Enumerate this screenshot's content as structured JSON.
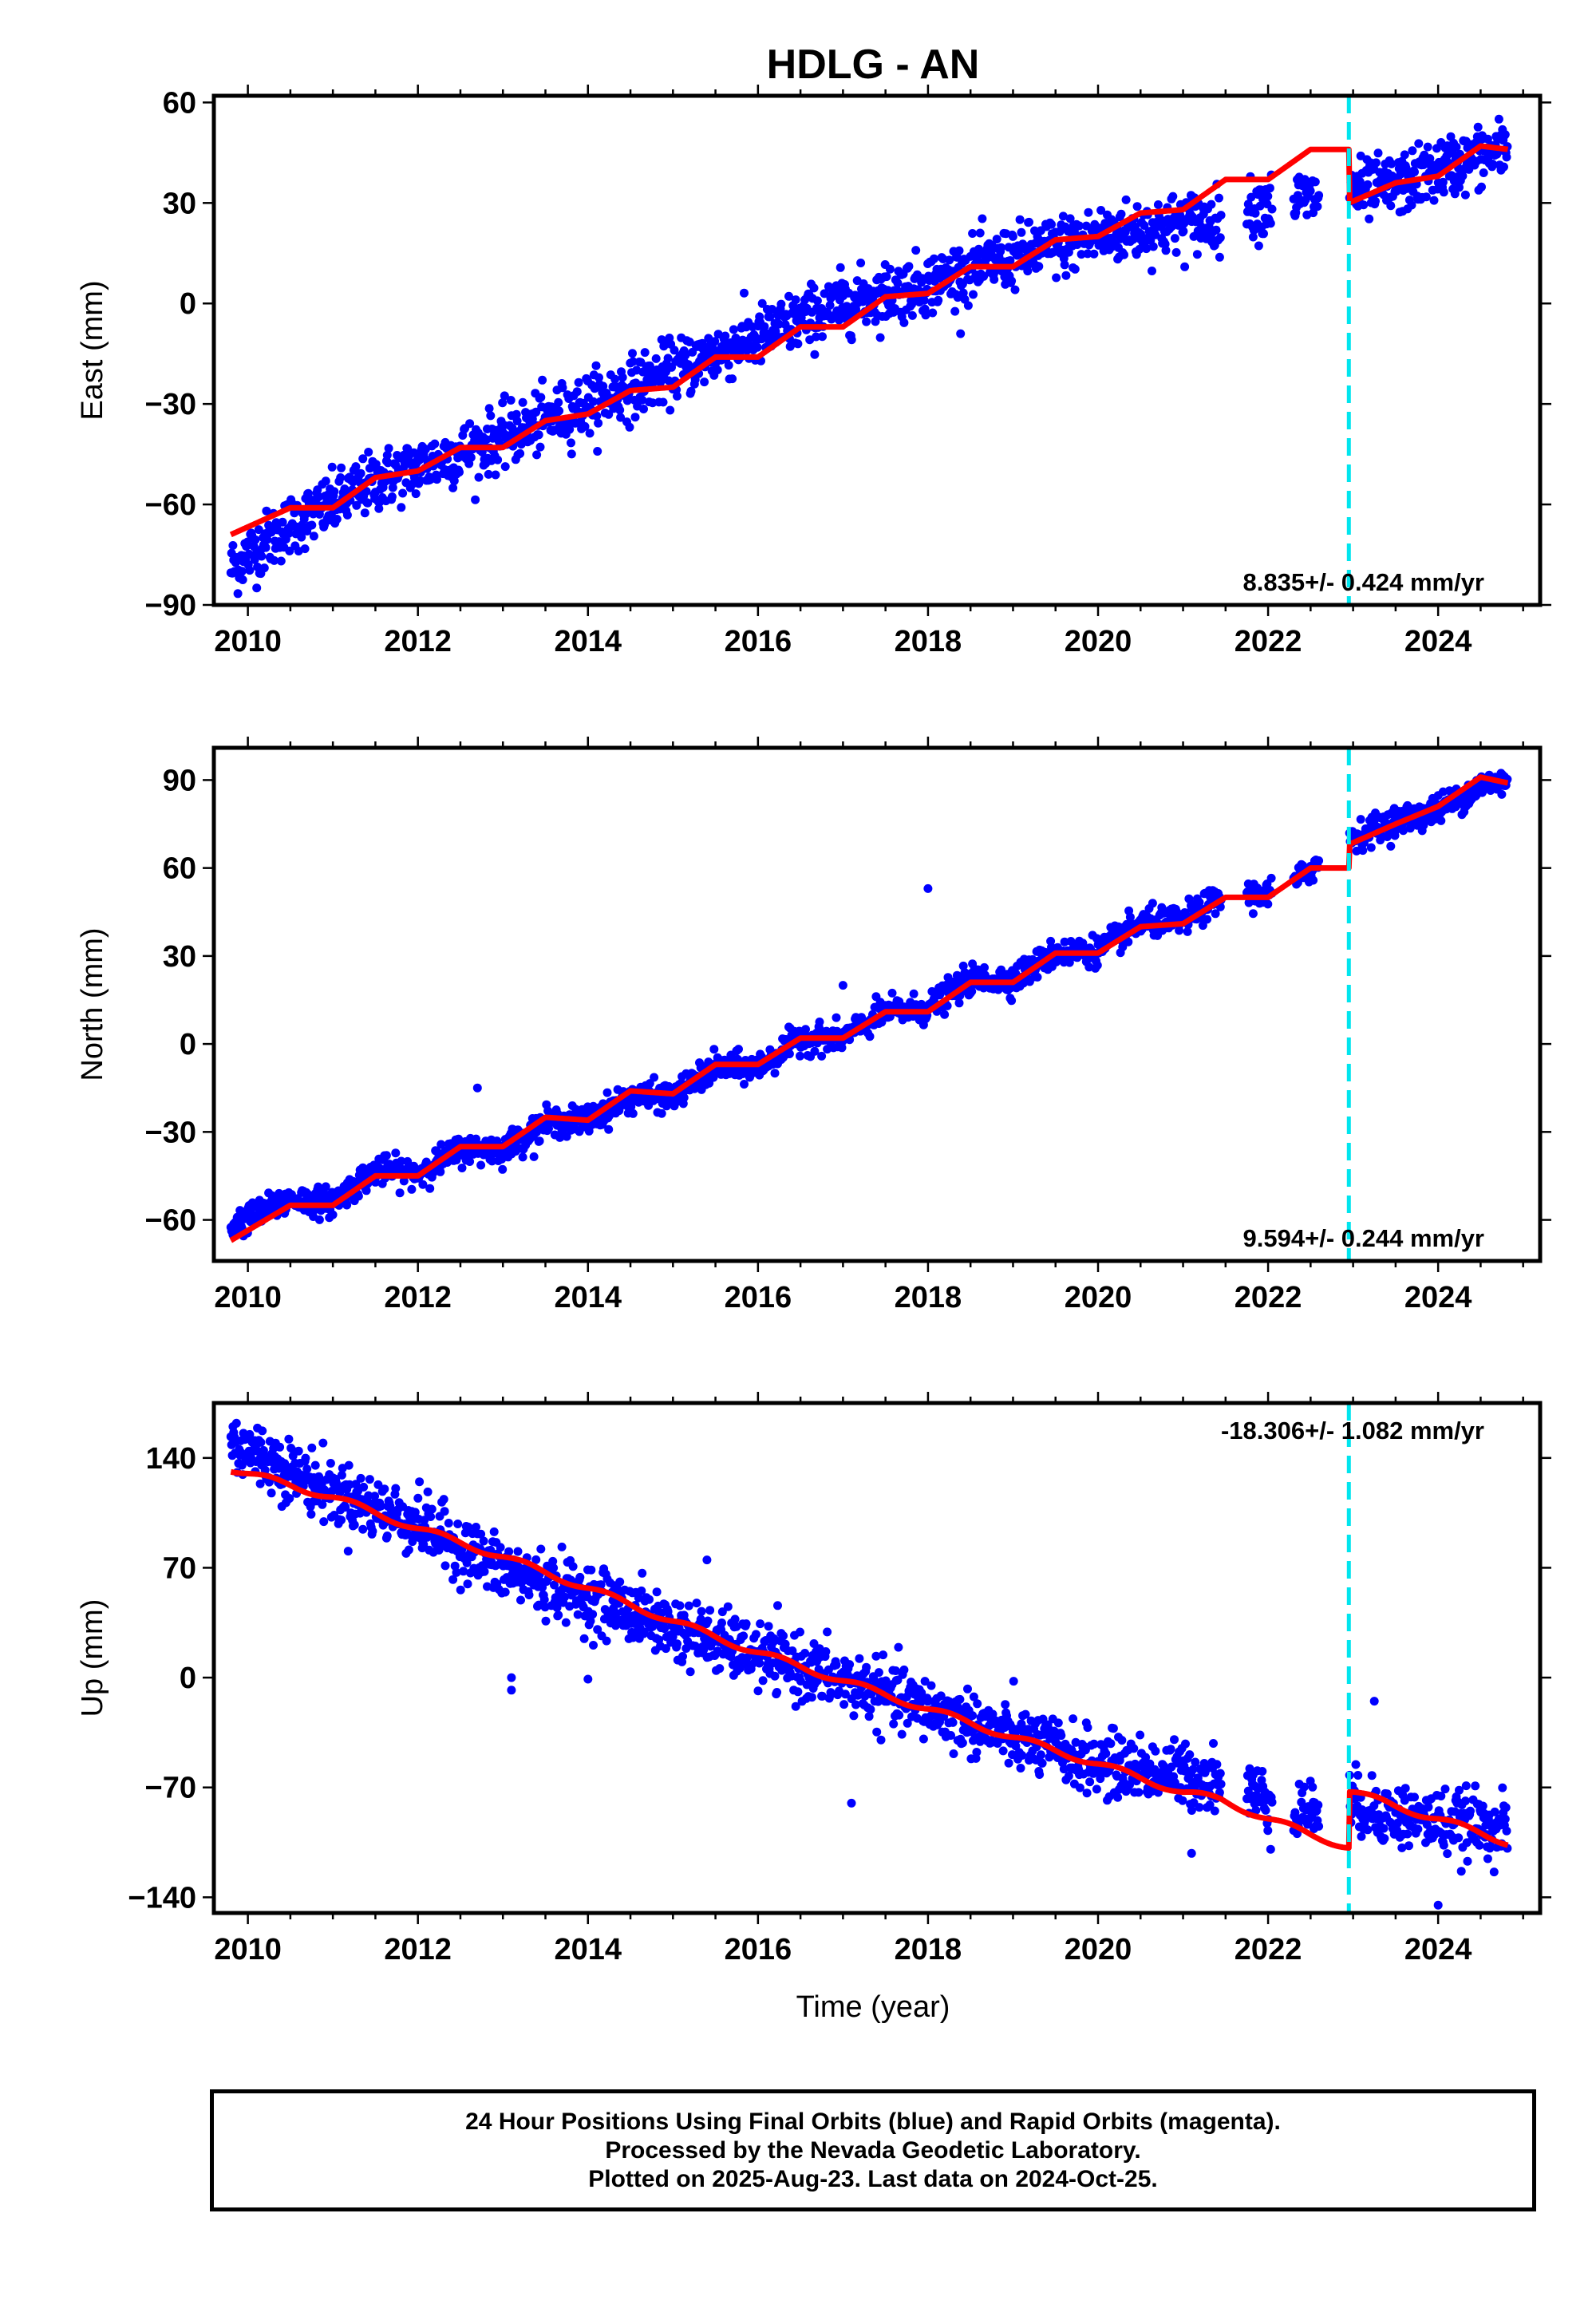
{
  "title": "HDLG - AN",
  "chart_data": [
    {
      "type": "scatter",
      "component": "East",
      "ylabel": "East (mm)",
      "xlim": [
        2009.6,
        2025.2
      ],
      "ylim": [
        -90,
        62
      ],
      "xticks": [
        2010,
        2012,
        2014,
        2016,
        2018,
        2020,
        2022,
        2024
      ],
      "yticks": [
        -90,
        -60,
        -30,
        0,
        30,
        60
      ],
      "rate_text": "8.835+/- 0.424 mm/yr",
      "rate_position": "bottom-right",
      "gaps": [
        [
          2021.45,
          2021.75
        ],
        [
          2022.05,
          2022.3
        ],
        [
          2022.6,
          2022.95
        ]
      ],
      "scatter_series": {
        "name": "24 Hour Positions (blue)",
        "color": "#0000ff",
        "day_step": 3,
        "profile": [
          [
            2009.8,
            -79
          ],
          [
            2010.0,
            -75
          ],
          [
            2010.5,
            -66
          ],
          [
            2011.0,
            -60
          ],
          [
            2011.5,
            -53
          ],
          [
            2012.0,
            -49
          ],
          [
            2013.0,
            -40
          ],
          [
            2014.0,
            -30
          ],
          [
            2015.0,
            -20
          ],
          [
            2016.0,
            -10
          ],
          [
            2017.0,
            0
          ],
          [
            2018.0,
            6
          ],
          [
            2019.0,
            14
          ],
          [
            2020.0,
            20
          ],
          [
            2021.0,
            24
          ],
          [
            2021.45,
            25
          ],
          [
            2022.0,
            30
          ],
          [
            2022.3,
            31
          ],
          [
            2022.95,
            33
          ],
          [
            2023.5,
            35
          ],
          [
            2024.0,
            40
          ],
          [
            2024.8,
            46
          ]
        ],
        "scatter": 4.5
      },
      "model_series": {
        "name": "Model fit",
        "color": "#ff0000",
        "profile": [
          [
            2009.8,
            -69
          ],
          [
            2010.5,
            -61
          ],
          [
            2011.0,
            -61
          ],
          [
            2011.5,
            -52
          ],
          [
            2012.0,
            -50
          ],
          [
            2012.5,
            -43
          ],
          [
            2013.0,
            -43
          ],
          [
            2013.5,
            -35
          ],
          [
            2014.0,
            -33
          ],
          [
            2014.5,
            -26
          ],
          [
            2015.0,
            -25
          ],
          [
            2015.5,
            -16
          ],
          [
            2016.0,
            -16
          ],
          [
            2016.5,
            -7
          ],
          [
            2017.0,
            -7
          ],
          [
            2017.5,
            2
          ],
          [
            2018.0,
            3
          ],
          [
            2018.5,
            11
          ],
          [
            2019.0,
            11
          ],
          [
            2019.5,
            19
          ],
          [
            2020.0,
            20
          ],
          [
            2020.5,
            27
          ],
          [
            2021.0,
            28
          ],
          [
            2021.5,
            37
          ],
          [
            2022.0,
            37
          ],
          [
            2022.5,
            46
          ],
          [
            2022.95,
            46
          ],
          [
            2022.951,
            30
          ],
          [
            2023.5,
            36
          ],
          [
            2024.0,
            38
          ],
          [
            2024.5,
            47
          ],
          [
            2024.82,
            46
          ]
        ],
        "wiggle": 0
      },
      "offset_epoch": 2022.95
    },
    {
      "type": "scatter",
      "component": "North",
      "ylabel": "North (mm)",
      "xlim": [
        2009.6,
        2025.2
      ],
      "ylim": [
        -74,
        101
      ],
      "xticks": [
        2010,
        2012,
        2014,
        2016,
        2018,
        2020,
        2022,
        2024
      ],
      "yticks": [
        -60,
        -30,
        0,
        30,
        60,
        90
      ],
      "rate_text": "9.594+/- 0.244 mm/yr",
      "rate_position": "bottom-right",
      "gaps": [
        [
          2021.45,
          2021.75
        ],
        [
          2022.05,
          2022.3
        ],
        [
          2022.6,
          2022.95
        ]
      ],
      "scatter_series": {
        "name": "24 Hour Positions (blue)",
        "color": "#0000ff",
        "day_step": 3,
        "profile": [
          [
            2009.8,
            -62
          ],
          [
            2010.5,
            -53
          ],
          [
            2011.0,
            -54
          ],
          [
            2011.5,
            -43
          ],
          [
            2012.0,
            -44
          ],
          [
            2012.5,
            -36
          ],
          [
            2013.0,
            -36
          ],
          [
            2013.5,
            -27
          ],
          [
            2014.0,
            -26
          ],
          [
            2014.5,
            -18
          ],
          [
            2015.0,
            -18
          ],
          [
            2015.5,
            -8
          ],
          [
            2016.0,
            -8
          ],
          [
            2016.5,
            2
          ],
          [
            2017.0,
            2
          ],
          [
            2017.5,
            11
          ],
          [
            2018.0,
            12
          ],
          [
            2018.5,
            22
          ],
          [
            2019.0,
            22
          ],
          [
            2019.5,
            31
          ],
          [
            2020.0,
            32
          ],
          [
            2020.5,
            41
          ],
          [
            2021.0,
            42
          ],
          [
            2021.45,
            50
          ],
          [
            2022.0,
            51
          ],
          [
            2022.3,
            55
          ],
          [
            2022.95,
            70
          ],
          [
            2023.5,
            76
          ],
          [
            2024.0,
            80
          ],
          [
            2024.5,
            88
          ],
          [
            2024.8,
            90
          ]
        ],
        "scatter": 2.4
      },
      "model_series": {
        "name": "Model fit",
        "color": "#ff0000",
        "profile": [
          [
            2009.8,
            -67
          ],
          [
            2010.5,
            -55
          ],
          [
            2011.0,
            -55
          ],
          [
            2011.5,
            -45
          ],
          [
            2012.0,
            -45
          ],
          [
            2012.5,
            -35
          ],
          [
            2013.0,
            -35
          ],
          [
            2013.5,
            -25
          ],
          [
            2014.0,
            -26
          ],
          [
            2014.5,
            -16
          ],
          [
            2015.0,
            -17
          ],
          [
            2015.5,
            -7
          ],
          [
            2016.0,
            -7
          ],
          [
            2016.5,
            2
          ],
          [
            2017.0,
            2
          ],
          [
            2017.5,
            11
          ],
          [
            2018.0,
            11
          ],
          [
            2018.5,
            21
          ],
          [
            2019.0,
            21
          ],
          [
            2019.5,
            31
          ],
          [
            2020.0,
            31
          ],
          [
            2020.5,
            40
          ],
          [
            2021.0,
            41
          ],
          [
            2021.5,
            50
          ],
          [
            2022.0,
            50
          ],
          [
            2022.5,
            60
          ],
          [
            2022.95,
            60
          ],
          [
            2022.951,
            68
          ],
          [
            2023.5,
            75
          ],
          [
            2024.0,
            81
          ],
          [
            2024.5,
            91
          ],
          [
            2024.82,
            89
          ]
        ],
        "wiggle": 0
      },
      "extra_points": [
        [
          2018.0,
          53
        ],
        [
          2017.0,
          20
        ],
        [
          2012.7,
          -15
        ]
      ],
      "offset_epoch": 2022.95
    },
    {
      "type": "scatter",
      "component": "Up",
      "ylabel": "Up (mm)",
      "xlim": [
        2009.6,
        2025.2
      ],
      "ylim": [
        -150,
        175
      ],
      "xticks": [
        2010,
        2012,
        2014,
        2016,
        2018,
        2020,
        2022,
        2024
      ],
      "yticks": [
        -140,
        -70,
        0,
        70,
        140
      ],
      "rate_text": "-18.306+/- 1.082 mm/yr",
      "rate_position": "top-right",
      "gaps": [
        [
          2021.45,
          2021.75
        ],
        [
          2022.05,
          2022.3
        ],
        [
          2022.6,
          2022.95
        ]
      ],
      "scatter_series": {
        "name": "24 Hour Positions (blue)",
        "color": "#0000ff",
        "day_step": 3,
        "profile": [
          [
            2009.8,
            150
          ],
          [
            2010.5,
            132
          ],
          [
            2011.0,
            118
          ],
          [
            2012.0,
            98
          ],
          [
            2013.0,
            68
          ],
          [
            2014.0,
            52
          ],
          [
            2015.0,
            32
          ],
          [
            2016.0,
            14
          ],
          [
            2017.0,
            -2
          ],
          [
            2018.0,
            -20
          ],
          [
            2019.0,
            -38
          ],
          [
            2020.0,
            -55
          ],
          [
            2021.0,
            -62
          ],
          [
            2021.45,
            -65
          ],
          [
            2022.0,
            -78
          ],
          [
            2022.3,
            -85
          ],
          [
            2022.95,
            -80
          ],
          [
            2023.5,
            -88
          ],
          [
            2024.0,
            -92
          ],
          [
            2024.8,
            -95
          ]
        ],
        "scatter": 10
      },
      "model_series": {
        "name": "Model fit",
        "color": "#ff0000",
        "profile": [
          [
            2009.8,
            133
          ],
          [
            2011.0,
            115
          ],
          [
            2012.0,
            95
          ],
          [
            2013.0,
            77
          ],
          [
            2014.0,
            57
          ],
          [
            2015.0,
            36
          ],
          [
            2016.0,
            16
          ],
          [
            2017.0,
            -2
          ],
          [
            2018.0,
            -20
          ],
          [
            2019.0,
            -38
          ],
          [
            2020.0,
            -55
          ],
          [
            2021.0,
            -73
          ],
          [
            2021.45,
            -78
          ],
          [
            2022.0,
            -90
          ],
          [
            2022.5,
            -100
          ],
          [
            2022.95,
            -108
          ],
          [
            2022.951,
            -72
          ],
          [
            2023.5,
            -82
          ],
          [
            2024.0,
            -90
          ],
          [
            2024.82,
            -105
          ]
        ],
        "wiggle": 2
      },
      "extra_points": [
        [
          2023.25,
          -15
        ],
        [
          2013.1,
          0
        ],
        [
          2013.1,
          -8
        ],
        [
          2014.0,
          -1
        ],
        [
          2015.4,
          75
        ],
        [
          2017.1,
          -80
        ],
        [
          2021.1,
          -112
        ],
        [
          2024.0,
          -145
        ]
      ],
      "offset_epoch": 2022.95
    }
  ],
  "xlabel": "Time (year)",
  "offset_line_color": "#00e5ee",
  "footer": {
    "line1": "24 Hour Positions Using Final Orbits (blue) and Rapid Orbits (magenta).",
    "line2": "Processed by the Nevada Geodetic Laboratory.",
    "line3": "Plotted on 2025-Aug-23. Last data on 2024-Oct-25."
  }
}
